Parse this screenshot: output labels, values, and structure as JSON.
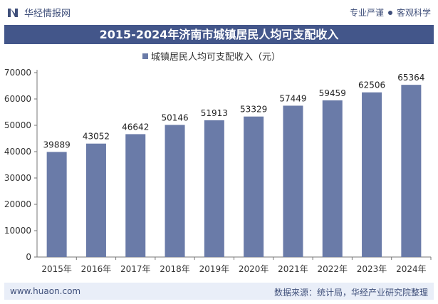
{
  "header": {
    "brand": "华经情报网",
    "tagline_left": "专业严谨",
    "tagline_right": "客观科学"
  },
  "chart_data": {
    "type": "bar",
    "title": "2015-2024年济南市城镇居民人均可支配收入",
    "series": [
      {
        "name": "城镇居民人均可支配收入（元）",
        "values": [
          39889,
          43052,
          46642,
          50146,
          51913,
          53329,
          57449,
          59459,
          62506,
          65364
        ]
      }
    ],
    "categories": [
      "2015年",
      "2016年",
      "2017年",
      "2018年",
      "2019年",
      "2020年",
      "2021年",
      "2022年",
      "2023年",
      "2024年"
    ],
    "y_ticks": [
      "0",
      "10000",
      "20000",
      "30000",
      "40000",
      "50000",
      "60000",
      "70000"
    ],
    "ylim": [
      0,
      70000
    ],
    "grid": false,
    "legend_position": "top-center",
    "bar_color": "#6a7ba8"
  },
  "footer": {
    "site": "www.huaon.com",
    "source": "数据来源：统计局，华经产业研究院整理"
  }
}
